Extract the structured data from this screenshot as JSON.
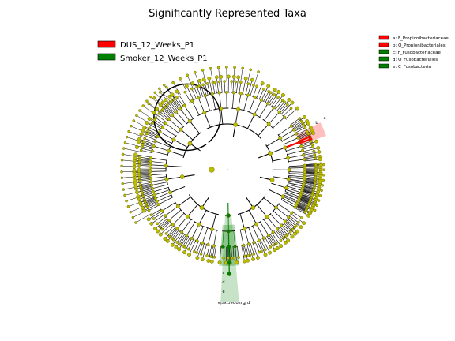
{
  "title": "Significantly Represented Taxa",
  "groups": [
    {
      "label": "DUS_12_Weeks_P1",
      "color": "#ff0000"
    },
    {
      "label": "Smoker_12_Weeks_P1",
      "color": "#008000"
    }
  ],
  "clade_legend": [
    {
      "label": "a: F_Propionibacteriaceae",
      "color": "#ff0000"
    },
    {
      "label": "b: O_Propionibacteriales",
      "color": "#ff0000"
    },
    {
      "label": "c: F_Fusobacteriaceae",
      "color": "#008000"
    },
    {
      "label": "d: O_Fusobacteriales",
      "color": "#008000"
    },
    {
      "label": "e: C_Fusobacteria",
      "color": "#008000"
    }
  ],
  "clade_markers": {
    "red": [
      "a",
      "b"
    ],
    "green": [
      "c",
      "d",
      "e"
    ]
  },
  "phylum_label": "p:Fusobacteria",
  "colors": {
    "node": "#bdbd00",
    "node_edge": "#6b6b00",
    "red": "#ff0000",
    "green": "#008000"
  }
}
